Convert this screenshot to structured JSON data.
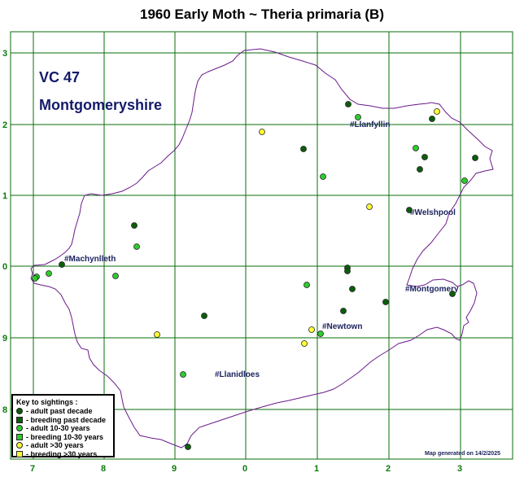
{
  "title": "1960 Early Moth ~ Theria primaria (B)",
  "vc_code": "VC 47",
  "vc_name": "Montgomeryshire",
  "grid_labels": {
    "x": [
      "7",
      "8",
      "9",
      "0",
      "1",
      "2",
      "3"
    ],
    "y": [
      "3",
      "2",
      "1",
      "0",
      "9",
      "9",
      "8"
    ]
  },
  "towns": [
    {
      "name": "#Llanfyllin"
    },
    {
      "name": "#Welshpool"
    },
    {
      "name": "#Machynlleth"
    },
    {
      "name": "#Montgomery"
    },
    {
      "name": "#Newtown"
    },
    {
      "name": "#Llanidloes"
    }
  ],
  "legend": {
    "title": "Key to sightings :",
    "items": [
      {
        "label": "- adult past decade",
        "shape": "circle",
        "color": "#0b5e0b"
      },
      {
        "label": "- breeding past decade",
        "shape": "square",
        "color": "#0b5e0b"
      },
      {
        "label": "- adult 10-30 years",
        "shape": "circle",
        "color": "#2ecc2e"
      },
      {
        "label": "- breeding 10-30 years",
        "shape": "square",
        "color": "#2ecc2e"
      },
      {
        "label": "- adult >30 years",
        "shape": "circle",
        "color": "#ffff33"
      },
      {
        "label": "- breeding >30 years",
        "shape": "square",
        "color": "#ffff33"
      }
    ]
  },
  "credit": "Map generated on 14/2/2025",
  "colors": {
    "grid": "#0a6e0a",
    "boundary": "#6a1a8a",
    "adult_past_decade": "#0b5e0b",
    "adult_10_30": "#2ecc2e",
    "adult_over_30": "#ffff33"
  }
}
